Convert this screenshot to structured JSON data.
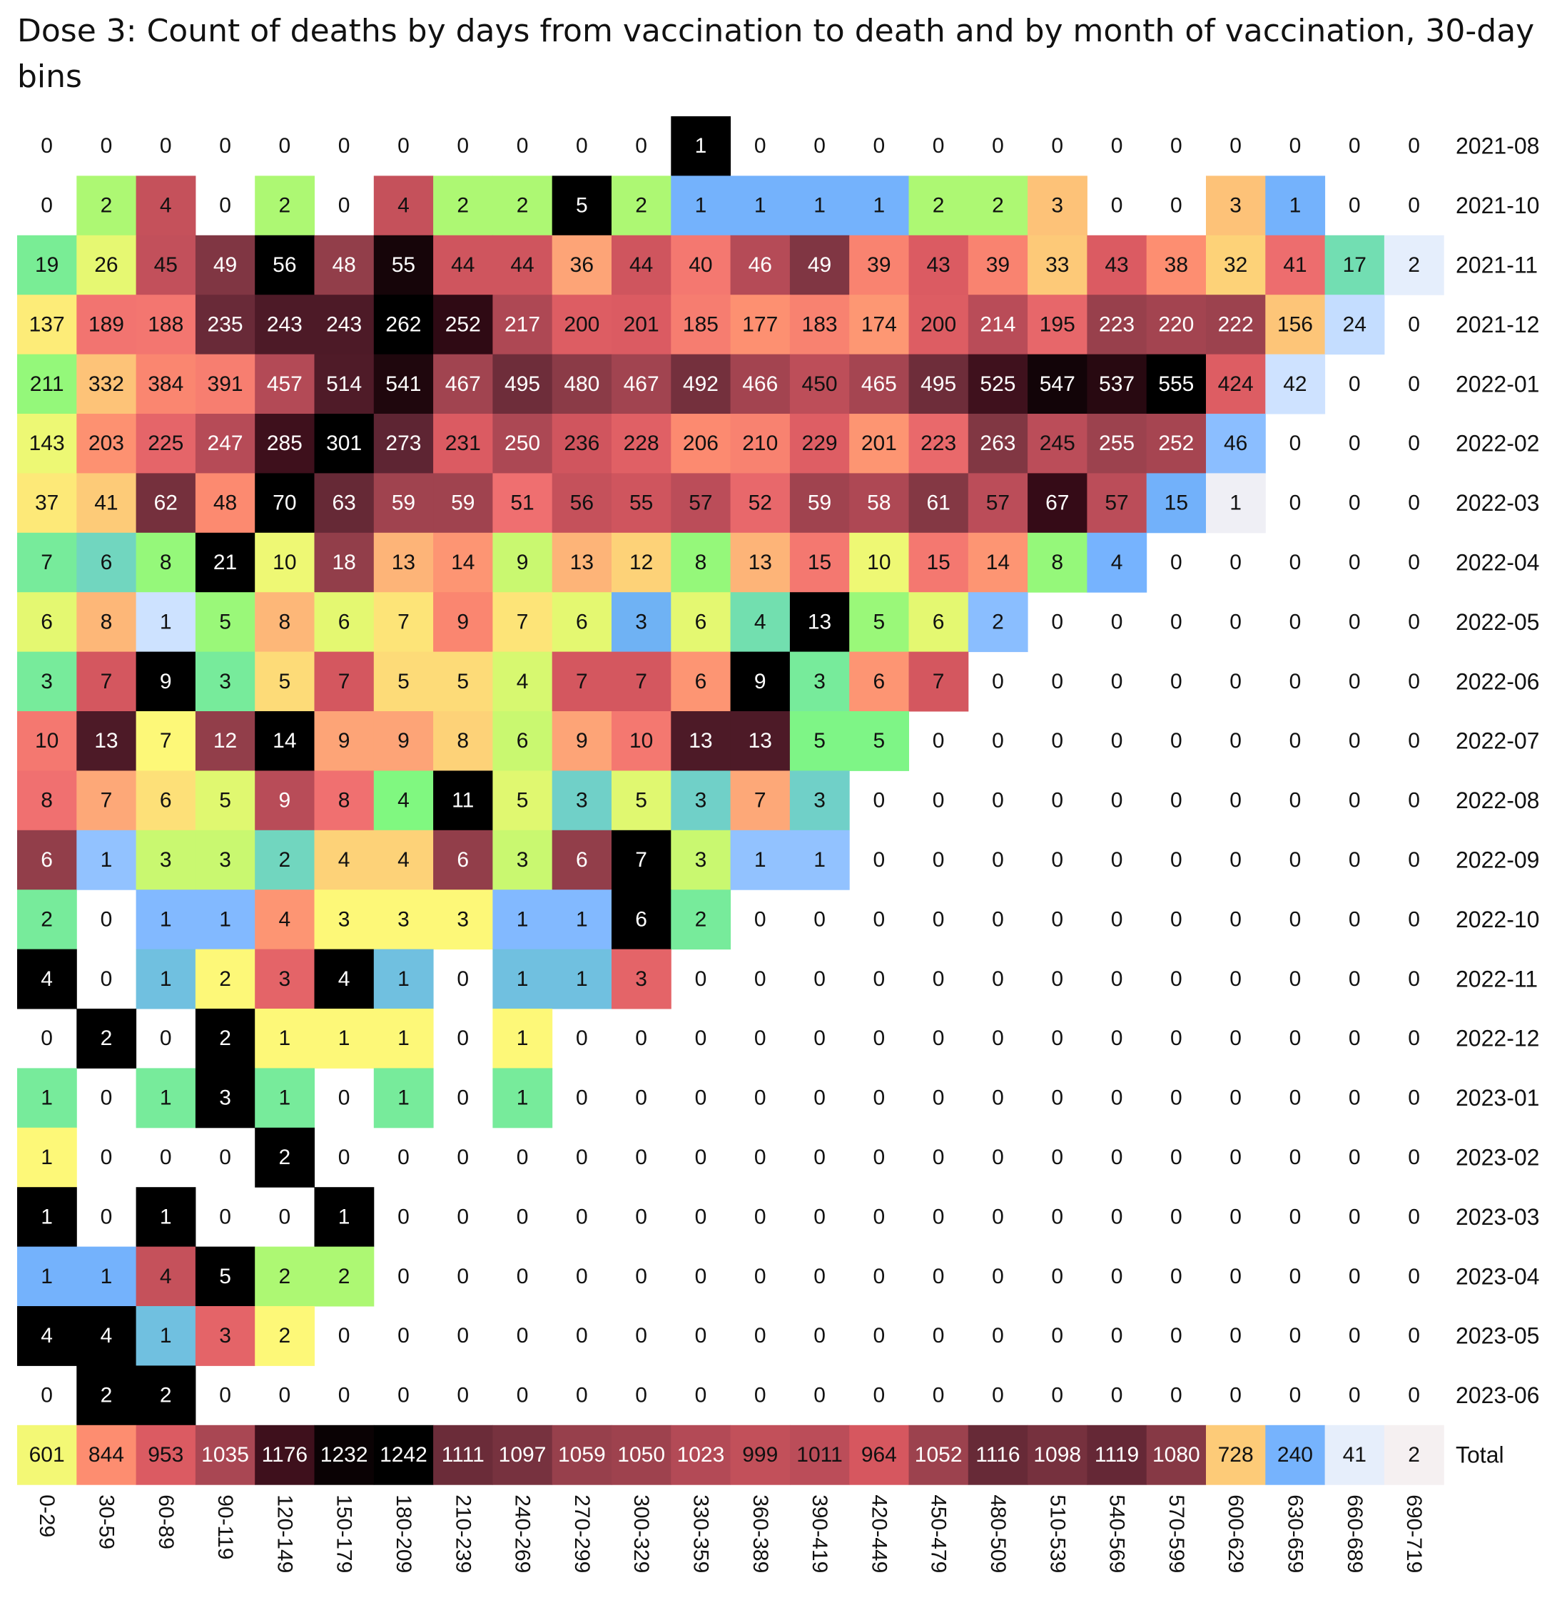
{
  "chart_data": {
    "type": "heatmap",
    "title": "Dose 3: Count of deaths by days from vaccination to death and by month of vaccination, 30-day bins",
    "x_categories": [
      "0-29",
      "30-59",
      "60-89",
      "90-119",
      "120-149",
      "150-179",
      "180-209",
      "210-239",
      "240-269",
      "270-299",
      "300-329",
      "330-359",
      "360-389",
      "390-419",
      "420-449",
      "450-479",
      "480-509",
      "510-539",
      "540-569",
      "570-599",
      "600-629",
      "630-659",
      "660-689",
      "690-719"
    ],
    "y_categories": [
      "2021-08",
      "2021-10",
      "2021-11",
      "2021-12",
      "2022-01",
      "2022-02",
      "2022-03",
      "2022-04",
      "2022-05",
      "2022-06",
      "2022-07",
      "2022-08",
      "2022-09",
      "2022-10",
      "2022-11",
      "2022-12",
      "2023-01",
      "2023-02",
      "2023-03",
      "2023-04",
      "2023-05",
      "2023-06",
      "Total"
    ],
    "values": [
      [
        0,
        0,
        0,
        0,
        0,
        0,
        0,
        0,
        0,
        0,
        0,
        1,
        0,
        0,
        0,
        0,
        0,
        0,
        0,
        0,
        0,
        0,
        0,
        0
      ],
      [
        0,
        2,
        4,
        0,
        2,
        0,
        4,
        2,
        2,
        5,
        2,
        1,
        1,
        1,
        1,
        2,
        2,
        3,
        0,
        0,
        3,
        1,
        0,
        0
      ],
      [
        19,
        26,
        45,
        49,
        56,
        48,
        55,
        44,
        44,
        36,
        44,
        40,
        46,
        49,
        39,
        43,
        39,
        33,
        43,
        38,
        32,
        41,
        17,
        2
      ],
      [
        137,
        189,
        188,
        235,
        243,
        243,
        262,
        252,
        217,
        200,
        201,
        185,
        177,
        183,
        174,
        200,
        214,
        195,
        223,
        220,
        222,
        156,
        24,
        0
      ],
      [
        211,
        332,
        384,
        391,
        457,
        514,
        541,
        467,
        495,
        480,
        467,
        492,
        466,
        450,
        465,
        495,
        525,
        547,
        537,
        555,
        424,
        42,
        0,
        0
      ],
      [
        143,
        203,
        225,
        247,
        285,
        301,
        273,
        231,
        250,
        236,
        228,
        206,
        210,
        229,
        201,
        223,
        263,
        245,
        255,
        252,
        46,
        0,
        0,
        0
      ],
      [
        37,
        41,
        62,
        48,
        70,
        63,
        59,
        59,
        51,
        56,
        55,
        57,
        52,
        59,
        58,
        61,
        57,
        67,
        57,
        15,
        1,
        0,
        0,
        0
      ],
      [
        7,
        6,
        8,
        21,
        10,
        18,
        13,
        14,
        9,
        13,
        12,
        8,
        13,
        15,
        10,
        15,
        14,
        8,
        4,
        0,
        0,
        0,
        0,
        0
      ],
      [
        6,
        8,
        1,
        5,
        8,
        6,
        7,
        9,
        7,
        6,
        3,
        6,
        4,
        13,
        5,
        6,
        2,
        0,
        0,
        0,
        0,
        0,
        0,
        0
      ],
      [
        3,
        7,
        9,
        3,
        5,
        7,
        5,
        5,
        4,
        7,
        7,
        6,
        9,
        3,
        6,
        7,
        0,
        0,
        0,
        0,
        0,
        0,
        0,
        0
      ],
      [
        10,
        13,
        7,
        12,
        14,
        9,
        9,
        8,
        6,
        9,
        10,
        13,
        13,
        5,
        5,
        0,
        0,
        0,
        0,
        0,
        0,
        0,
        0,
        0
      ],
      [
        8,
        7,
        6,
        5,
        9,
        8,
        4,
        11,
        5,
        3,
        5,
        3,
        7,
        3,
        0,
        0,
        0,
        0,
        0,
        0,
        0,
        0,
        0,
        0
      ],
      [
        6,
        1,
        3,
        3,
        2,
        4,
        4,
        6,
        3,
        6,
        7,
        3,
        1,
        1,
        0,
        0,
        0,
        0,
        0,
        0,
        0,
        0,
        0,
        0
      ],
      [
        2,
        0,
        1,
        1,
        4,
        3,
        3,
        3,
        1,
        1,
        6,
        2,
        0,
        0,
        0,
        0,
        0,
        0,
        0,
        0,
        0,
        0,
        0,
        0
      ],
      [
        4,
        0,
        1,
        2,
        3,
        4,
        1,
        0,
        1,
        1,
        3,
        0,
        0,
        0,
        0,
        0,
        0,
        0,
        0,
        0,
        0,
        0,
        0,
        0
      ],
      [
        0,
        2,
        0,
        2,
        1,
        1,
        1,
        0,
        1,
        0,
        0,
        0,
        0,
        0,
        0,
        0,
        0,
        0,
        0,
        0,
        0,
        0,
        0,
        0
      ],
      [
        1,
        0,
        1,
        3,
        1,
        0,
        1,
        0,
        1,
        0,
        0,
        0,
        0,
        0,
        0,
        0,
        0,
        0,
        0,
        0,
        0,
        0,
        0,
        0
      ],
      [
        1,
        0,
        0,
        0,
        2,
        0,
        0,
        0,
        0,
        0,
        0,
        0,
        0,
        0,
        0,
        0,
        0,
        0,
        0,
        0,
        0,
        0,
        0,
        0
      ],
      [
        1,
        0,
        1,
        0,
        0,
        1,
        0,
        0,
        0,
        0,
        0,
        0,
        0,
        0,
        0,
        0,
        0,
        0,
        0,
        0,
        0,
        0,
        0,
        0
      ],
      [
        1,
        1,
        4,
        5,
        2,
        2,
        0,
        0,
        0,
        0,
        0,
        0,
        0,
        0,
        0,
        0,
        0,
        0,
        0,
        0,
        0,
        0,
        0,
        0
      ],
      [
        4,
        4,
        1,
        3,
        2,
        0,
        0,
        0,
        0,
        0,
        0,
        0,
        0,
        0,
        0,
        0,
        0,
        0,
        0,
        0,
        0,
        0,
        0,
        0
      ],
      [
        0,
        2,
        2,
        0,
        0,
        0,
        0,
        0,
        0,
        0,
        0,
        0,
        0,
        0,
        0,
        0,
        0,
        0,
        0,
        0,
        0,
        0,
        0,
        0
      ],
      [
        601,
        844,
        953,
        1035,
        1176,
        1232,
        1242,
        1111,
        1097,
        1059,
        1050,
        1023,
        999,
        1011,
        964,
        1052,
        1116,
        1098,
        1119,
        1080,
        728,
        240,
        41,
        2
      ]
    ],
    "color_scale": "per-row relative to row maximum; zero cells uncolored",
    "palette": [
      "#f6f0f0",
      "#e0edff",
      "#c5ddff",
      "#96c4ff",
      "#78b4ff",
      "#6fb0f8",
      "#70d0c8",
      "#73e4a8",
      "#80f880",
      "#b8f870",
      "#e0f870",
      "#fdf878",
      "#fde078",
      "#fdc878",
      "#fda878",
      "#fd8c70",
      "#f07070",
      "#d85860",
      "#b84c58",
      "#8c3c48",
      "#5c2432",
      "#380c18",
      "#000000"
    ]
  }
}
